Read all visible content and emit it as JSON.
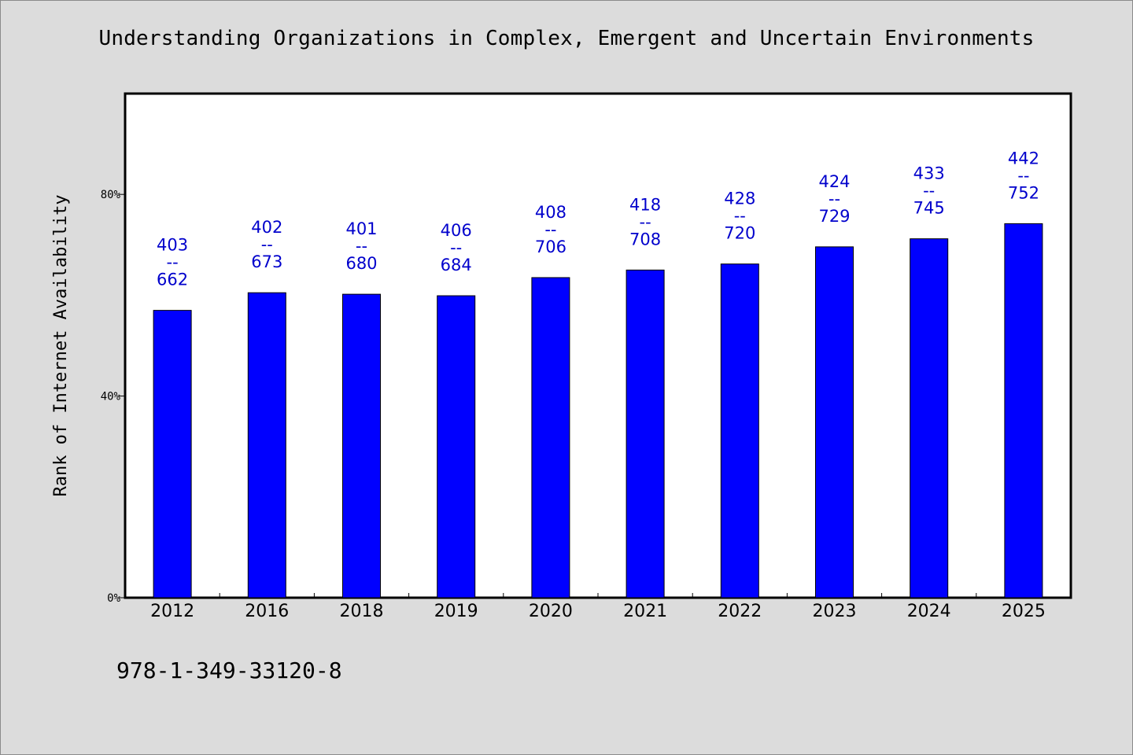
{
  "header": {
    "title": "Understanding Organizations in Complex, Emergent and Uncertain Environments"
  },
  "footer": {
    "isbn": "978-1-349-33120-8"
  },
  "colors": {
    "bar": "#0000ff",
    "label": "#0000cc",
    "plot_background": "#ffffff",
    "page_background": "#dcdcdc"
  },
  "chart_data": {
    "type": "bar",
    "title": "Understanding Organizations in Complex, Emergent and Uncertain Environments",
    "xlabel": "",
    "ylabel": "Rank of Internet Availability",
    "ylim": [
      0,
      100
    ],
    "yticks": [
      0,
      40,
      80
    ],
    "ytick_labels": [
      "0%",
      "40%",
      "80%"
    ],
    "categories": [
      "2012",
      "2016",
      "2018",
      "2019",
      "2020",
      "2021",
      "2022",
      "2023",
      "2024",
      "2025"
    ],
    "values": [
      57,
      60.5,
      60.2,
      59.9,
      63.5,
      65,
      66.2,
      69.6,
      71.2,
      74.2
    ],
    "data_labels": [
      [
        "403",
        "--",
        "662"
      ],
      [
        "402",
        "--",
        "673"
      ],
      [
        "401",
        "--",
        "680"
      ],
      [
        "406",
        "--",
        "684"
      ],
      [
        "408",
        "--",
        "706"
      ],
      [
        "418",
        "--",
        "708"
      ],
      [
        "428",
        "--",
        "720"
      ],
      [
        "424",
        "--",
        "729"
      ],
      [
        "433",
        "--",
        "745"
      ],
      [
        "442",
        "--",
        "752"
      ]
    ],
    "grid": false,
    "legend": "none"
  }
}
